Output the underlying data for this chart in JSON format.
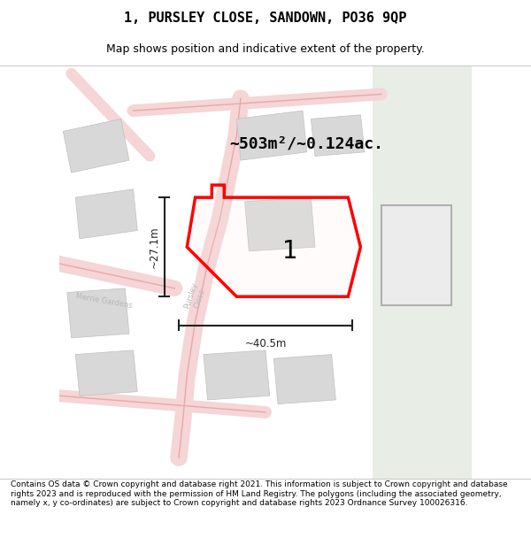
{
  "title": "1, PURSLEY CLOSE, SANDOWN, PO36 9QP",
  "subtitle": "Map shows position and indicative extent of the property.",
  "area_text": "~503m²/~0.124ac.",
  "dim_width": "~40.5m",
  "dim_height": "~27.1m",
  "plot_label": "1",
  "footer": "Contains OS data © Crown copyright and database right 2021. This information is subject to Crown copyright and database rights 2023 and is reproduced with the permission of HM Land Registry. The polygons (including the associated geometry, namely x, y co-ordinates) are subject to Crown copyright and database rights 2023 Ordnance Survey 100026316.",
  "bg_color": "#f0ede8",
  "road_fill": "#f5d5d5",
  "road_edge": "#e8a8a8",
  "building_color": "#d8d8d8",
  "building_edge": "#c0c0c0",
  "plot_face": [
    1,
    0.9,
    0.9,
    0.15
  ],
  "plot_edge": "#ff0000",
  "grass_color": "#e8ede5",
  "title_color": "#000000",
  "footer_color": "#000000",
  "dim_color": "#222222"
}
